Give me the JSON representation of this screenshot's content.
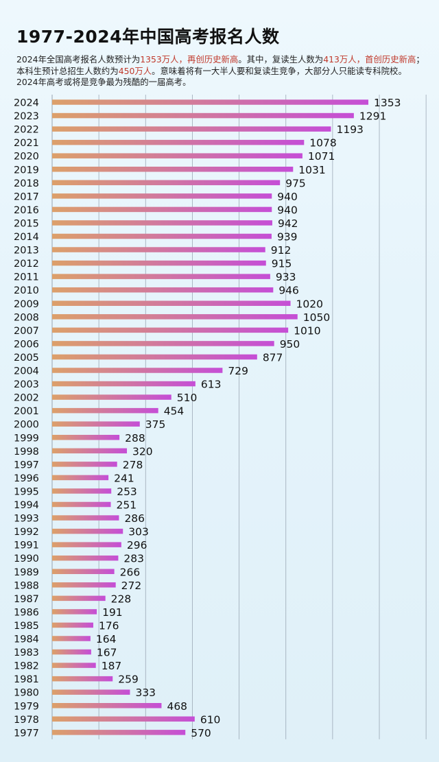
{
  "page": {
    "title": "1977-2024年中国高考报名人数",
    "desc": {
      "p1": "2024年全国高考报名人数预计为",
      "h1": "1353万人，再创历史新高",
      "p2": "。其中，复读生人数为",
      "h2": "413万人，首创历史新高",
      "p3": "；本科生预计总招生人数约为",
      "h3": "450万人",
      "p4": "。意味着将有一大半人要和复读生竞争，大部分人只能读专科院校。2024年高考或将是竞争最为残酷的一届高考。"
    }
  },
  "colors": {
    "highlight": "#c0392b",
    "bar_start": "#dca06a",
    "bar_end": "#c54ed6",
    "grid": "#8e9aa8",
    "text": "#111111"
  },
  "chart_data": {
    "type": "bar",
    "orientation": "horizontal",
    "unit": "万人",
    "xlim": [
      0,
      1600
    ],
    "grid": true,
    "categories": [
      "2024",
      "2023",
      "2022",
      "2021",
      "2020",
      "2019",
      "2018",
      "2017",
      "2016",
      "2015",
      "2014",
      "2013",
      "2012",
      "2011",
      "2010",
      "2009",
      "2008",
      "2007",
      "2006",
      "2005",
      "2004",
      "2003",
      "2002",
      "2001",
      "2000",
      "1999",
      "1998",
      "1997",
      "1996",
      "1995",
      "1994",
      "1993",
      "1992",
      "1991",
      "1990",
      "1989",
      "1988",
      "1987",
      "1986",
      "1985",
      "1984",
      "1983",
      "1982",
      "1981",
      "1980",
      "1979",
      "1978",
      "1977"
    ],
    "values": [
      1353,
      1291,
      1193,
      1078,
      1071,
      1031,
      975,
      940,
      940,
      942,
      939,
      912,
      915,
      933,
      946,
      1020,
      1050,
      1010,
      950,
      877,
      729,
      613,
      510,
      454,
      375,
      288,
      320,
      278,
      241,
      253,
      251,
      286,
      303,
      296,
      283,
      266,
      272,
      228,
      191,
      176,
      164,
      167,
      187,
      259,
      333,
      468,
      610,
      570
    ]
  }
}
